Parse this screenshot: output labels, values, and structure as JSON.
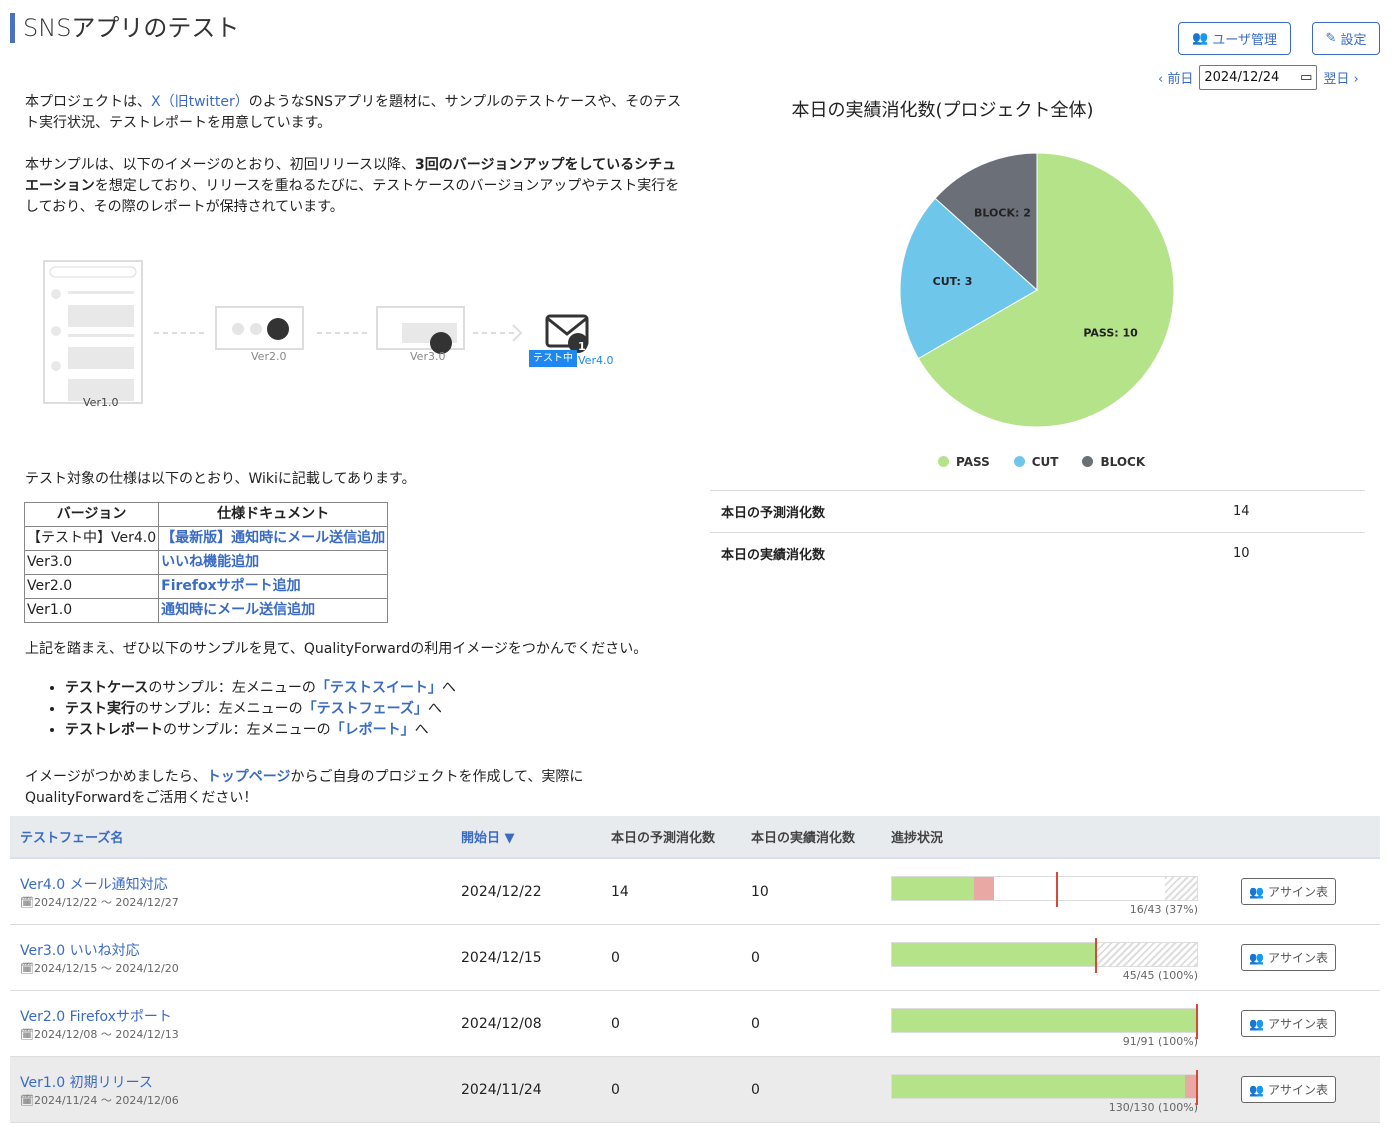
{
  "title": "SNSアプリのテスト",
  "header": {
    "user_mgmt": "ユーザ管理",
    "settings": "設定",
    "prev": "前日",
    "next": "翌日",
    "date": "2024/12/24"
  },
  "intro": {
    "p1a": "本プロジェクトは、",
    "p1link": "X（旧twitter）",
    "p1b": "のようなSNSアプリを題材に、サンプルのテストケースや、そのテスト実行状況、テストレポートを用意しています。",
    "p2a": "本サンプルは、以下のイメージのとおり、初回リリース以降、",
    "p2bold": "3回のバージョンアップをしているシチュエーション",
    "p2b": "を想定しており、リリースを重ねるたびに、テストケースのバージョンアップやテスト実行をしており、その際のレポートが保持されています。",
    "diagram": {
      "v1": "Ver1.0",
      "v2": "Ver2.0",
      "v3": "Ver3.0",
      "badge": "テスト中",
      "v4": "Ver4.0",
      "mail_count": "1"
    },
    "p3": "テスト対象の仕様は以下のとおり、Wikiに記載してあります。",
    "spec_headers": [
      "バージョン",
      "仕様ドキュメント"
    ],
    "spec_rows": [
      [
        "【テスト中】Ver4.0",
        "【最新版】通知時にメール送信追加"
      ],
      [
        "Ver3.0",
        "いいね機能追加"
      ],
      [
        "Ver2.0",
        "Firefoxサポート追加"
      ],
      [
        "Ver1.0",
        "通知時にメール送信追加"
      ]
    ],
    "p4": "上記を踏まえ、ぜひ以下のサンプルを見て、QualityForwardの利用イメージをつかんでください。",
    "bullets": [
      {
        "bold": "テストケース",
        "text": "のサンプル：左メニューの",
        "link": "「テストスイート」",
        "end": "へ"
      },
      {
        "bold": "テスト実行",
        "text": "のサンプル：左メニューの",
        "link": "「テストフェーズ」",
        "end": "へ"
      },
      {
        "bold": "テストレポート",
        "text": "のサンプル：左メニューの",
        "link": "「レポート」",
        "end": "へ"
      }
    ],
    "p5a": "イメージがつかめましたら、",
    "p5link": "トップページ",
    "p5b": "からご自身のプロジェクトを作成して、実際にQualityForwardをご活用ください！"
  },
  "chart_data": {
    "type": "pie",
    "title": "本日の実績消化数(プロジェクト全体)",
    "categories": [
      "PASS",
      "CUT",
      "BLOCK"
    ],
    "values": [
      10,
      3,
      2
    ],
    "colors": [
      "#b5e38a",
      "#6ec6ea",
      "#6b7078"
    ],
    "legend": "bottom"
  },
  "stats": [
    {
      "label": "本日の予測消化数",
      "value": "14"
    },
    {
      "label": "本日の実績消化数",
      "value": "10"
    }
  ],
  "phases": {
    "headers": [
      "テストフェーズ名",
      "開始日 ▼",
      "本日の予測消化数",
      "本日の実績消化数",
      "進捗状況"
    ],
    "assign_label": "アサイン表",
    "rows": [
      {
        "name": "Ver4.0 メール通知対応",
        "range": "2024/12/22 ～ 2024/12/27",
        "start": "2024/12/22",
        "pred": "14",
        "actual": "10",
        "progress": "16/43 (37%)",
        "pass": 27,
        "fail": 6.5,
        "hatch": 10.5,
        "marker": 54
      },
      {
        "name": "Ver3.0 いいね対応",
        "range": "2024/12/15 ～ 2024/12/20",
        "start": "2024/12/15",
        "pred": "0",
        "actual": "0",
        "progress": "45/45 (100%)",
        "pass": 67,
        "fail": 0,
        "hatch": 33,
        "marker": 67
      },
      {
        "name": "Ver2.0 Firefoxサポート",
        "range": "2024/12/08 ～ 2024/12/13",
        "start": "2024/12/08",
        "pred": "0",
        "actual": "0",
        "progress": "91/91 (100%)",
        "pass": 100,
        "fail": 0,
        "hatch": 0,
        "marker": 100
      },
      {
        "name": "Ver1.0 初期リリース",
        "range": "2024/11/24 ～ 2024/12/06",
        "start": "2024/11/24",
        "pred": "0",
        "actual": "0",
        "progress": "130/130 (100%)",
        "pass": 96,
        "fail": 4,
        "hatch": 0,
        "marker": 100
      }
    ]
  }
}
